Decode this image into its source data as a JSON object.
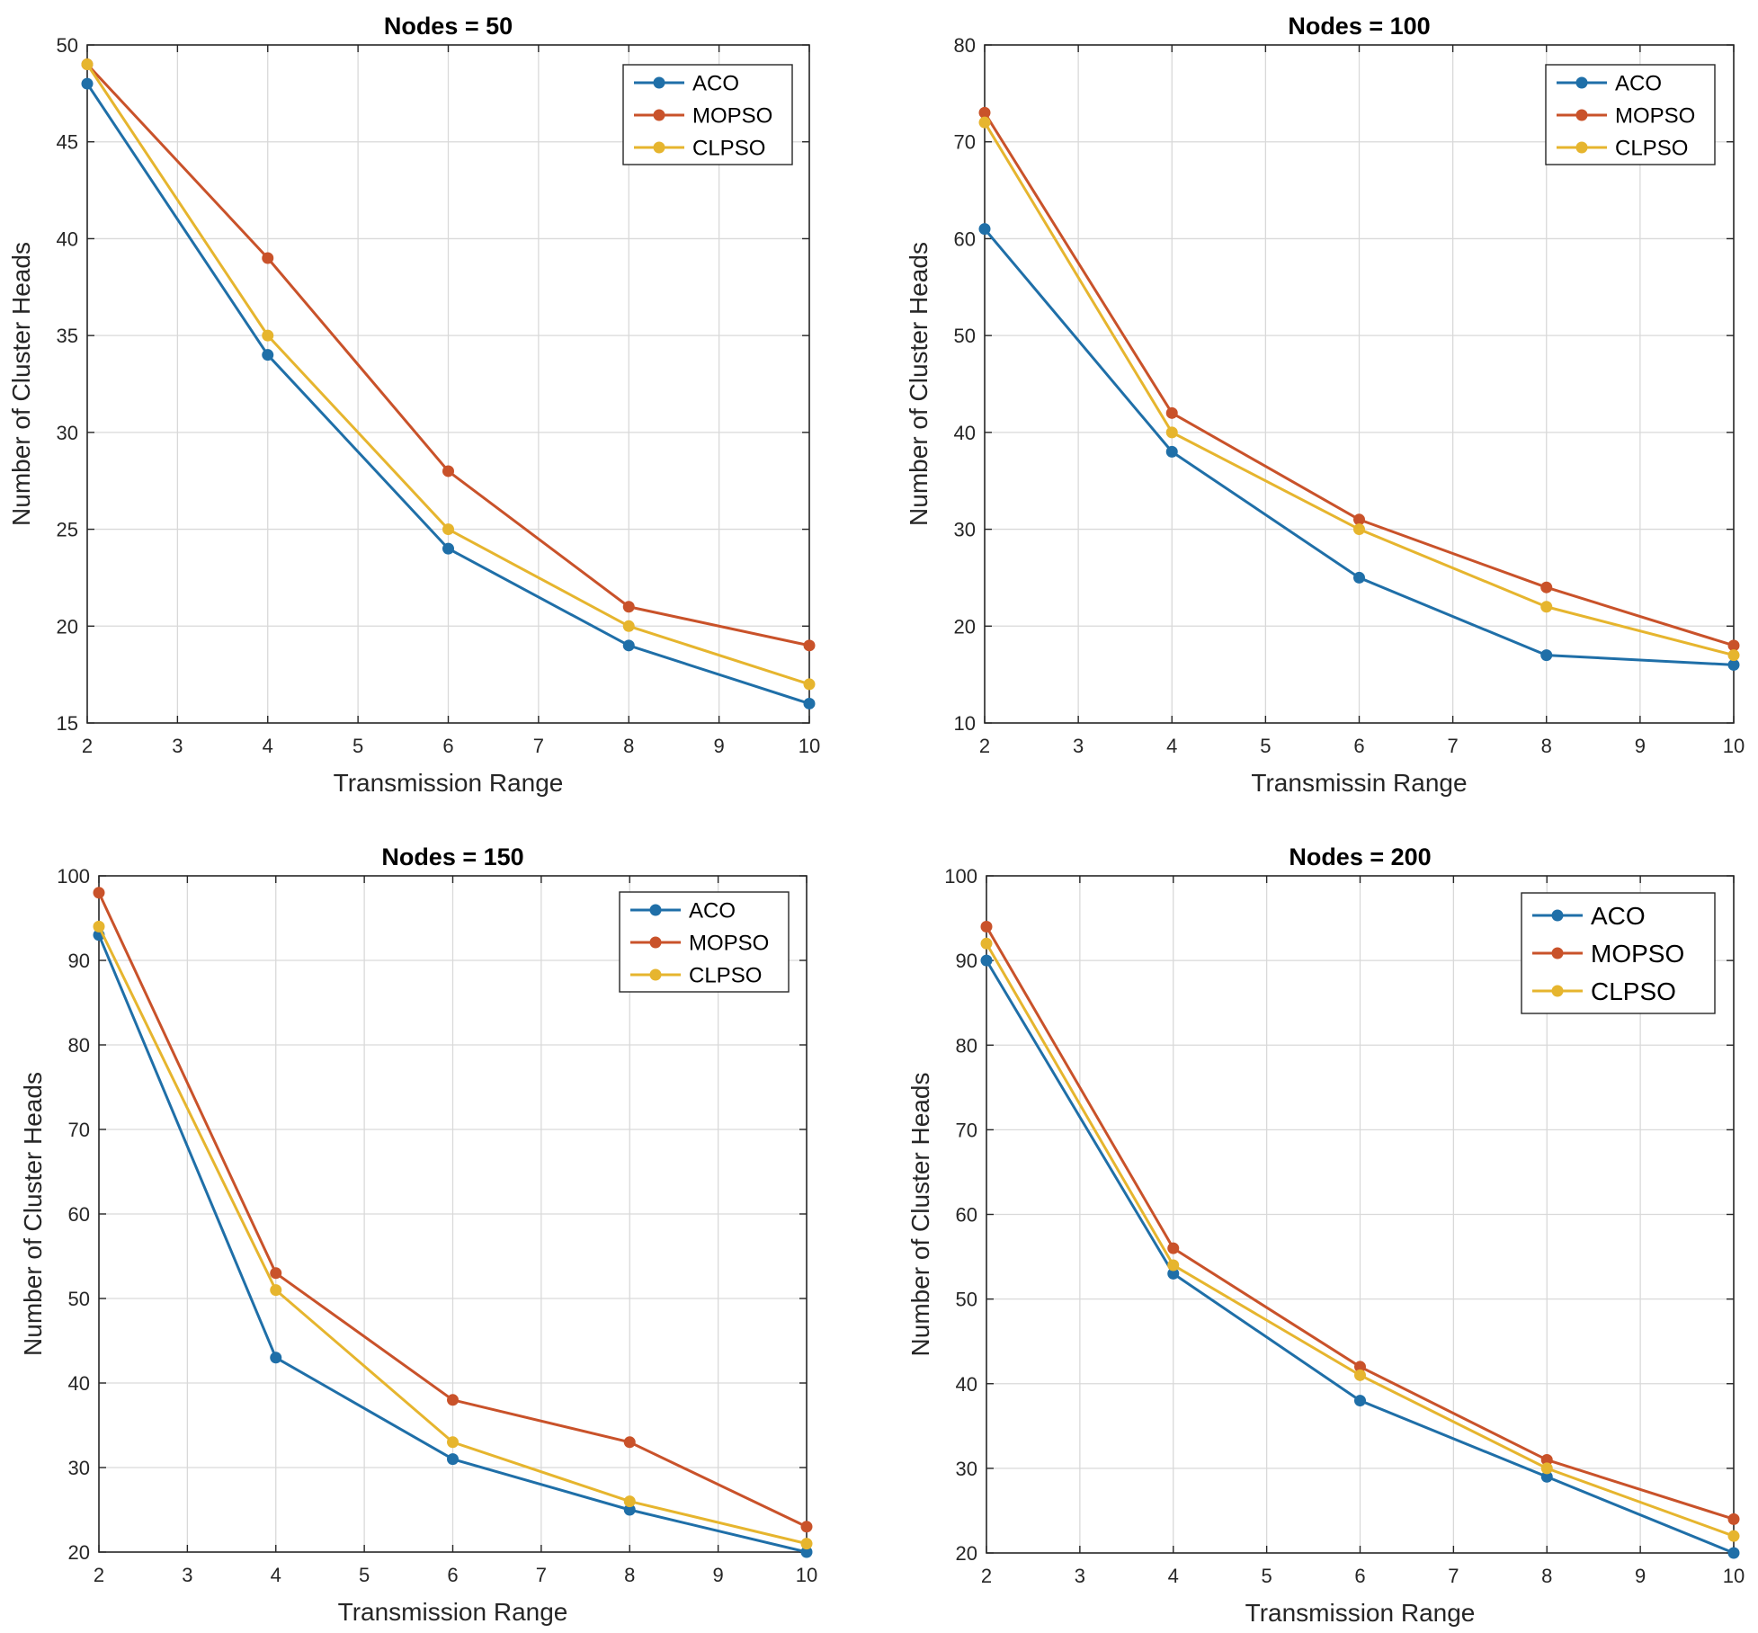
{
  "colors": {
    "ACO": "#1f6fa8",
    "MOPSO": "#c9522a",
    "CLPSO": "#e6b52e",
    "grid": "#d9d9d9",
    "axes": "#262626"
  },
  "chart_data": [
    {
      "type": "line",
      "title": "Nodes = 50",
      "xlabel": "Transmission Range",
      "ylabel": "Number of Cluster Heads",
      "xlim": [
        2,
        10
      ],
      "ylim": [
        15,
        50
      ],
      "xticks": [
        2,
        3,
        4,
        5,
        6,
        7,
        8,
        9,
        10
      ],
      "yticks": [
        15,
        20,
        25,
        30,
        35,
        40,
        45,
        50
      ],
      "grid": true,
      "legend_position": "top-right",
      "x": [
        2,
        4,
        6,
        8,
        10
      ],
      "series": [
        {
          "name": "ACO",
          "values": [
            48,
            34,
            24,
            19,
            16
          ]
        },
        {
          "name": "MOPSO",
          "values": [
            49,
            39,
            28,
            21,
            19
          ]
        },
        {
          "name": "CLPSO",
          "values": [
            49,
            35,
            25,
            20,
            17
          ]
        }
      ]
    },
    {
      "type": "line",
      "title": "Nodes = 100",
      "xlabel": "Transmissin Range",
      "ylabel": "Number of Cluster Heads",
      "xlim": [
        2,
        10
      ],
      "ylim": [
        10,
        80
      ],
      "xticks": [
        2,
        3,
        4,
        5,
        6,
        7,
        8,
        9,
        10
      ],
      "yticks": [
        10,
        20,
        30,
        40,
        50,
        60,
        70,
        80
      ],
      "grid": true,
      "legend_position": "top-right",
      "x": [
        2,
        4,
        6,
        8,
        10
      ],
      "series": [
        {
          "name": "ACO",
          "values": [
            61,
            38,
            25,
            17,
            16
          ]
        },
        {
          "name": "MOPSO",
          "values": [
            73,
            42,
            31,
            24,
            18
          ]
        },
        {
          "name": "CLPSO",
          "values": [
            72,
            40,
            30,
            22,
            17
          ]
        }
      ]
    },
    {
      "type": "line",
      "title": "Nodes = 150",
      "xlabel": "Transmission Range",
      "ylabel": "Number of Cluster Heads",
      "xlim": [
        2,
        10
      ],
      "ylim": [
        20,
        100
      ],
      "xticks": [
        2,
        3,
        4,
        5,
        6,
        7,
        8,
        9,
        10
      ],
      "yticks": [
        20,
        30,
        40,
        50,
        60,
        70,
        80,
        90,
        100
      ],
      "grid": true,
      "legend_position": "top-right",
      "x": [
        2,
        4,
        6,
        8,
        10
      ],
      "series": [
        {
          "name": "ACO",
          "values": [
            93,
            43,
            31,
            25,
            20
          ]
        },
        {
          "name": "MOPSO",
          "values": [
            98,
            53,
            38,
            33,
            23
          ]
        },
        {
          "name": "CLPSO",
          "values": [
            94,
            51,
            33,
            26,
            21
          ]
        }
      ]
    },
    {
      "type": "line",
      "title": "Nodes = 200",
      "xlabel": "Transmission Range",
      "ylabel": "Number of Cluster Heads",
      "xlim": [
        2,
        10
      ],
      "ylim": [
        20,
        100
      ],
      "xticks": [
        2,
        3,
        4,
        5,
        6,
        7,
        8,
        9,
        10
      ],
      "yticks": [
        20,
        30,
        40,
        50,
        60,
        70,
        80,
        90,
        100
      ],
      "grid": true,
      "legend_position": "top-right",
      "x": [
        2,
        4,
        6,
        8,
        10
      ],
      "series": [
        {
          "name": "ACO",
          "values": [
            90,
            53,
            38,
            29,
            20
          ]
        },
        {
          "name": "MOPSO",
          "values": [
            94,
            56,
            42,
            31,
            24
          ]
        },
        {
          "name": "CLPSO",
          "values": [
            92,
            54,
            41,
            30,
            22
          ]
        }
      ]
    }
  ]
}
